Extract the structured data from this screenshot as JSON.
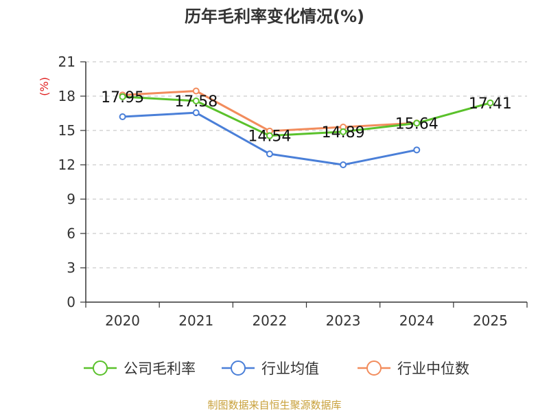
{
  "chart_data": {
    "type": "line",
    "title": "历年毛利率变化情况(%)",
    "ylabel": "(%)",
    "xlabel": "",
    "ylim": [
      0,
      21
    ],
    "yticks": [
      "0",
      "3",
      "6",
      "9",
      "12",
      "15",
      "18",
      "21"
    ],
    "categories": [
      "2020",
      "2021",
      "2022",
      "2023",
      "2024",
      "2025"
    ],
    "grid": true,
    "legend_position": "bottom",
    "series": [
      {
        "name": "公司毛利率",
        "color": "#5ac12b",
        "values": [
          17.95,
          17.58,
          14.54,
          14.89,
          15.64,
          17.41
        ],
        "labels": [
          "17.95",
          "17.58",
          "14.54",
          "14.89",
          "15.64",
          "17.41"
        ]
      },
      {
        "name": "行业均值",
        "color": "#4a7fd8",
        "values": [
          16.2,
          16.55,
          12.95,
          12.0,
          13.3,
          null
        ]
      },
      {
        "name": "行业中位数",
        "color": "#f28c5c",
        "values": [
          18.1,
          18.45,
          14.95,
          15.3,
          15.65,
          null
        ]
      }
    ],
    "source": "制图数据来自恒生聚源数据库",
    "source_color": "#c8a03a",
    "unit_color": "#e02020"
  }
}
